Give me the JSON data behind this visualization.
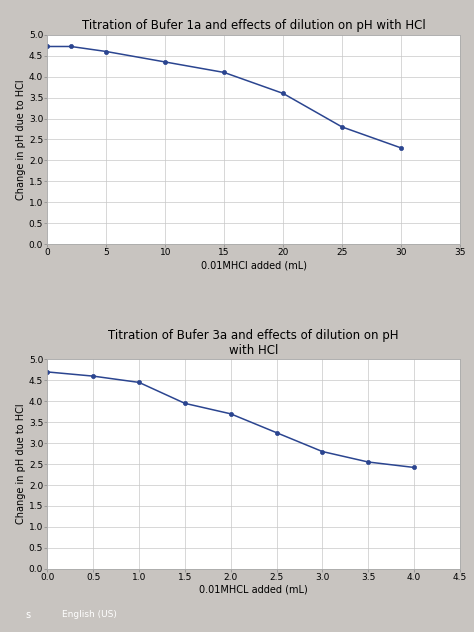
{
  "chart1": {
    "title": "Titration of Bufer 1a and effects of dilution on pH with HCl",
    "xlabel": "0.01MHCl added (mL)",
    "ylabel": "Change in pH due to HCl",
    "x": [
      0,
      2,
      5,
      10,
      15,
      20,
      25,
      30
    ],
    "y": [
      4.72,
      4.72,
      4.6,
      4.35,
      4.1,
      3.6,
      2.8,
      2.3
    ],
    "xlim": [
      0,
      35
    ],
    "ylim": [
      0,
      5
    ],
    "xticks": [
      0,
      5,
      10,
      15,
      20,
      25,
      30,
      35
    ],
    "yticks": [
      0,
      0.5,
      1,
      1.5,
      2,
      2.5,
      3,
      3.5,
      4,
      4.5,
      5
    ],
    "line_color": "#2B4590",
    "marker": "o",
    "marker_size": 3
  },
  "chart2": {
    "title": "Titration of Bufer 3a and effects of dilution on pH\nwith HCl",
    "xlabel": "0.01MHCL added (mL)",
    "ylabel": "Change in pH due to HCl",
    "x": [
      0,
      0.5,
      1,
      1.5,
      2,
      2.5,
      3,
      3.5,
      4
    ],
    "y": [
      4.7,
      4.6,
      4.45,
      3.95,
      3.7,
      3.25,
      2.8,
      2.55,
      2.42
    ],
    "xlim": [
      0,
      4.5
    ],
    "ylim": [
      0,
      5
    ],
    "xticks": [
      0,
      0.5,
      1,
      1.5,
      2,
      2.5,
      3,
      3.5,
      4,
      4.5
    ],
    "yticks": [
      0,
      0.5,
      1,
      1.5,
      2,
      2.5,
      3,
      3.5,
      4,
      4.5,
      5
    ],
    "line_color": "#2B4590",
    "marker": "o",
    "marker_size": 3
  },
  "page_bg": "#c8c4c0",
  "chart_bg": "#ffffff",
  "grid_color": "#c8c8c8",
  "taskbar_color": "#1e3a6e",
  "title_fontsize": 8.5,
  "label_fontsize": 7,
  "tick_fontsize": 6.5
}
